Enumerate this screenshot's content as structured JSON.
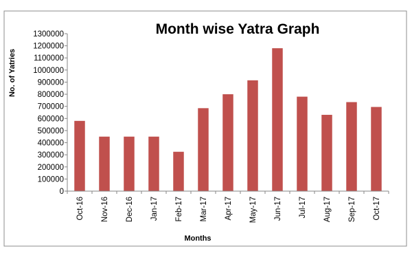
{
  "chart_data": {
    "type": "bar",
    "title": "Month wise Yatra Graph",
    "xlabel": "Months",
    "ylabel": "No. of Yatries",
    "categories": [
      "Oct-16",
      "Nov-16",
      "Dec-16",
      "Jan-17",
      "Feb-17",
      "Mar-17",
      "Apr-17",
      "May-17",
      "Jun-17",
      "Jul-17",
      "Aug-17",
      "Sep-17",
      "Oct-17"
    ],
    "values": [
      580000,
      450000,
      450000,
      450000,
      325000,
      685000,
      800000,
      915000,
      1180000,
      780000,
      630000,
      735000,
      695000
    ],
    "ylim": [
      0,
      1300000
    ],
    "yticks": [
      0,
      100000,
      200000,
      300000,
      400000,
      500000,
      600000,
      700000,
      800000,
      900000,
      1000000,
      1100000,
      1200000,
      1300000
    ],
    "bar_color": "#c0504d",
    "grid": false,
    "legend": "none"
  }
}
